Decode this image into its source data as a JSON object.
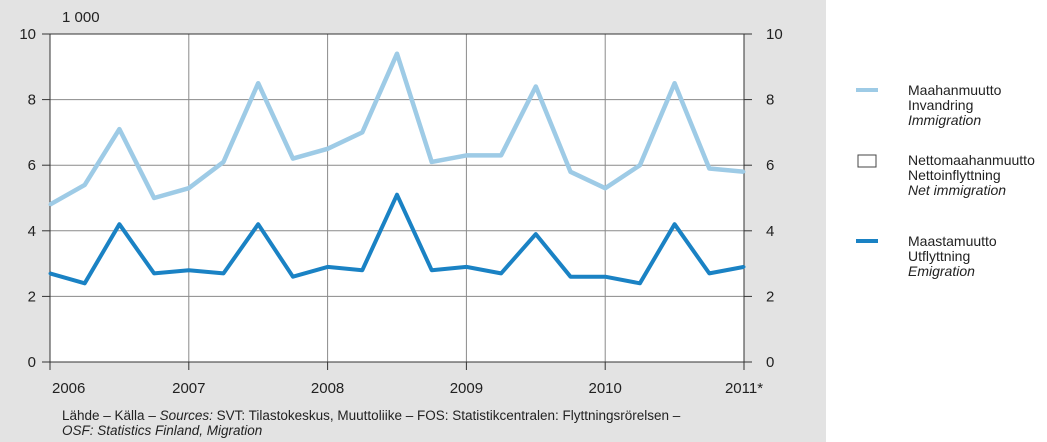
{
  "chart_data": {
    "type": "line",
    "unit_label": "1 000",
    "ylim": [
      0,
      10
    ],
    "yticks": [
      "0",
      "2",
      "4",
      "6",
      "8",
      "10"
    ],
    "x_labels": [
      "2006",
      "2007",
      "2008",
      "2009",
      "2010",
      "2011*"
    ],
    "quarters_per_year": 4,
    "grid": true,
    "legend_position": "right",
    "series": [
      {
        "key": "immigration",
        "name_fi": "Maahanmuutto",
        "name_sv": "Invandring",
        "name_en": "Immigration",
        "color": "#9ecbe6",
        "values": [
          4.8,
          5.4,
          7.1,
          5.0,
          5.3,
          6.1,
          8.5,
          6.2,
          6.5,
          7.0,
          9.4,
          6.1,
          6.3,
          6.3,
          8.4,
          5.8,
          5.3,
          6.0,
          8.5,
          5.9,
          5.8
        ]
      },
      {
        "key": "net_immigration",
        "name_fi": "Nettomaahanmuutto",
        "name_sv": "Nettoinflyttning",
        "name_en": "Net immigration",
        "color": "#ffffff",
        "values": []
      },
      {
        "key": "emigration",
        "name_fi": "Maastamuutto",
        "name_sv": "Utflyttning",
        "name_en": "Emigration",
        "color": "#1a82c4",
        "values": [
          2.7,
          2.4,
          4.2,
          2.7,
          2.8,
          2.7,
          4.2,
          2.6,
          2.9,
          2.8,
          5.1,
          2.8,
          2.9,
          2.7,
          3.9,
          2.6,
          2.6,
          2.4,
          4.2,
          2.7,
          2.9
        ]
      }
    ]
  },
  "source": {
    "line1_prefix": "Lähde – Källa – ",
    "line1_sources": "Sources:",
    "line1_rest": " SVT: Tilastokeskus, Muuttoliike – FOS: Statistikcentralen: Flyttningsrörelsen –",
    "line2": "OSF: Statistics Finland, Migration"
  }
}
